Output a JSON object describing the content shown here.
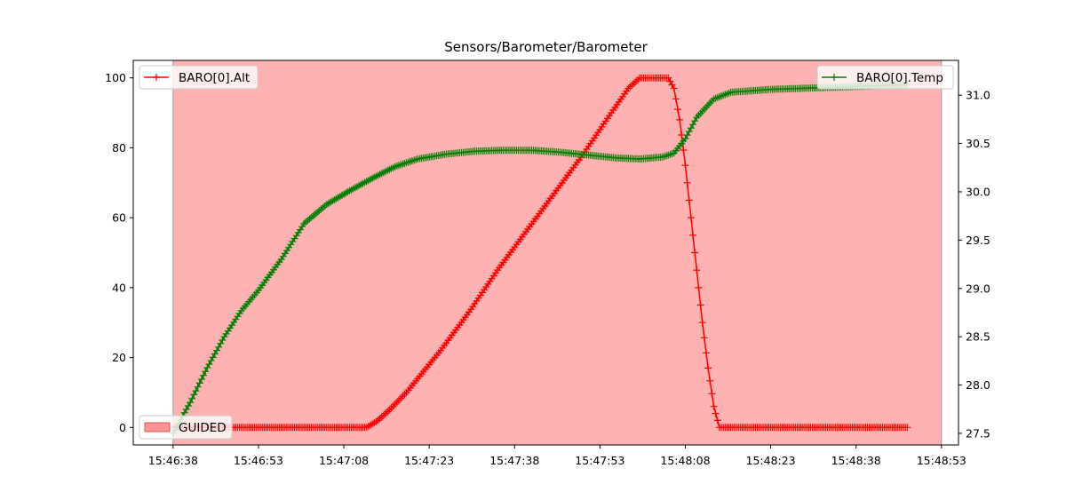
{
  "chart_data": {
    "type": "line",
    "title": "Sensors/Barometer/Barometer",
    "x_ticks": [
      "15:46:38",
      "15:46:53",
      "15:47:08",
      "15:47:23",
      "15:47:38",
      "15:47:53",
      "15:48:08",
      "15:48:23",
      "15:48:38",
      "15:48:53"
    ],
    "x_range": [
      "15:46:31",
      "15:48:56"
    ],
    "y_left": {
      "range": [
        -5,
        105
      ],
      "ticks": [
        "0",
        "20",
        "40",
        "60",
        "80",
        "100"
      ]
    },
    "y_right": {
      "range": [
        27.38,
        31.36
      ],
      "ticks": [
        "27.5",
        "28.0",
        "28.5",
        "29.0",
        "29.5",
        "30.0",
        "30.5",
        "31.0"
      ]
    },
    "shaded_region": {
      "label": "GUIDED",
      "x_start": "15:46:38",
      "x_end": "15:48:53",
      "color": "#ff6666"
    },
    "legend_placement": {
      "alt": "top-left",
      "temp": "top-right",
      "mode": "bottom-left"
    },
    "series": [
      {
        "name": "BARO[0].Alt",
        "axis": "left",
        "color": "#ff0000",
        "points": [
          [
            "15:46:38",
            0
          ],
          [
            "15:46:53",
            0
          ],
          [
            "15:47:08",
            0
          ],
          [
            "15:47:12",
            0
          ],
          [
            "15:47:14",
            2
          ],
          [
            "15:47:16",
            5
          ],
          [
            "15:47:19",
            10
          ],
          [
            "15:47:25",
            22
          ],
          [
            "15:47:30",
            33
          ],
          [
            "15:47:35",
            45
          ],
          [
            "15:47:40",
            56
          ],
          [
            "15:47:45",
            67
          ],
          [
            "15:47:50",
            78
          ],
          [
            "15:47:55",
            90
          ],
          [
            "15:47:58",
            97
          ],
          [
            "15:48:00",
            100
          ],
          [
            "15:48:03",
            100
          ],
          [
            "15:48:05",
            100
          ],
          [
            "15:48:06",
            97
          ],
          [
            "15:48:07",
            88
          ],
          [
            "15:48:08",
            75
          ],
          [
            "15:48:09",
            60
          ],
          [
            "15:48:10",
            45
          ],
          [
            "15:48:11",
            30
          ],
          [
            "15:48:12",
            17
          ],
          [
            "15:48:13",
            6
          ],
          [
            "15:48:14",
            0
          ],
          [
            "15:48:23",
            0
          ],
          [
            "15:48:38",
            0
          ],
          [
            "15:48:47",
            0
          ]
        ]
      },
      {
        "name": "BARO[0].Temp",
        "axis": "right",
        "color": "#008000",
        "points": [
          [
            "15:46:38",
            27.5
          ],
          [
            "15:46:41",
            27.82
          ],
          [
            "15:46:44",
            28.18
          ],
          [
            "15:46:47",
            28.5
          ],
          [
            "15:46:50",
            28.77
          ],
          [
            "15:46:53",
            28.98
          ],
          [
            "15:46:57",
            29.3
          ],
          [
            "15:47:01",
            29.67
          ],
          [
            "15:47:05",
            29.87
          ],
          [
            "15:47:09",
            30.01
          ],
          [
            "15:47:13",
            30.14
          ],
          [
            "15:47:17",
            30.26
          ],
          [
            "15:47:21",
            30.34
          ],
          [
            "15:47:26",
            30.39
          ],
          [
            "15:47:31",
            30.42
          ],
          [
            "15:47:36",
            30.43
          ],
          [
            "15:47:41",
            30.43
          ],
          [
            "15:47:46",
            30.41
          ],
          [
            "15:47:51",
            30.38
          ],
          [
            "15:47:56",
            30.35
          ],
          [
            "15:48:00",
            30.34
          ],
          [
            "15:48:04",
            30.36
          ],
          [
            "15:48:06",
            30.4
          ],
          [
            "15:48:08",
            30.55
          ],
          [
            "15:48:10",
            30.77
          ],
          [
            "15:48:13",
            30.96
          ],
          [
            "15:48:16",
            31.03
          ],
          [
            "15:48:23",
            31.06
          ],
          [
            "15:48:33",
            31.08
          ],
          [
            "15:48:43",
            31.1
          ],
          [
            "15:48:47",
            31.11
          ]
        ]
      }
    ]
  }
}
